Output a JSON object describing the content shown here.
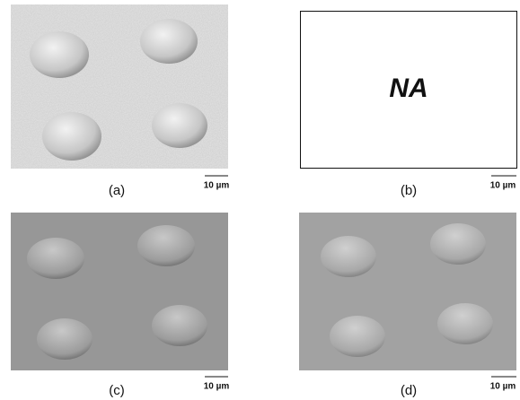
{
  "panels": [
    {
      "label": "(a)",
      "scale": "10 µm"
    },
    {
      "label": "(b)",
      "scale": "10 µm",
      "placeholder": "NA"
    },
    {
      "label": "(c)",
      "scale": "10 µm"
    },
    {
      "label": "(d)",
      "scale": "10 µm"
    }
  ]
}
